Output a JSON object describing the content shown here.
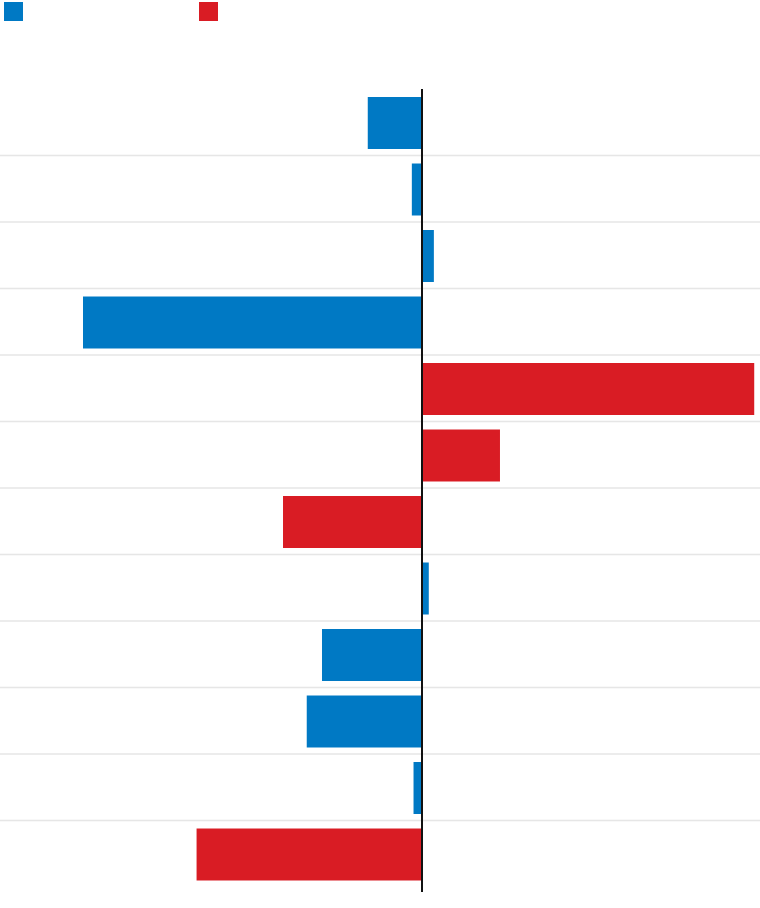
{
  "chart_data": {
    "type": "bar",
    "orientation": "horizontal",
    "title": "",
    "xlabel": "",
    "ylabel": "",
    "colors": {
      "blue": "#0079c4",
      "red": "#d91c24",
      "zero_line": "#111111",
      "grid": "#e6e6e6"
    },
    "legend": {
      "placement": "top-left",
      "items": [
        {
          "label": "",
          "color": "#0079c4"
        },
        {
          "label": "",
          "color": "#d91c24"
        }
      ]
    },
    "xlim": [
      -100,
      100
    ],
    "grid": true,
    "categories": [
      "",
      "",
      "",
      "",
      "",
      "",
      "",
      "",
      "",
      "",
      "",
      ""
    ],
    "values": [
      -16,
      -3,
      3.5,
      -100,
      98,
      23,
      -41,
      2,
      -29.5,
      -34,
      -2.5,
      -66.5
    ],
    "bar_colors": [
      "#0079c4",
      "#0079c4",
      "#0079c4",
      "#0079c4",
      "#d91c24",
      "#d91c24",
      "#d91c24",
      "#0079c4",
      "#0079c4",
      "#0079c4",
      "#0079c4",
      "#d91c24"
    ]
  }
}
